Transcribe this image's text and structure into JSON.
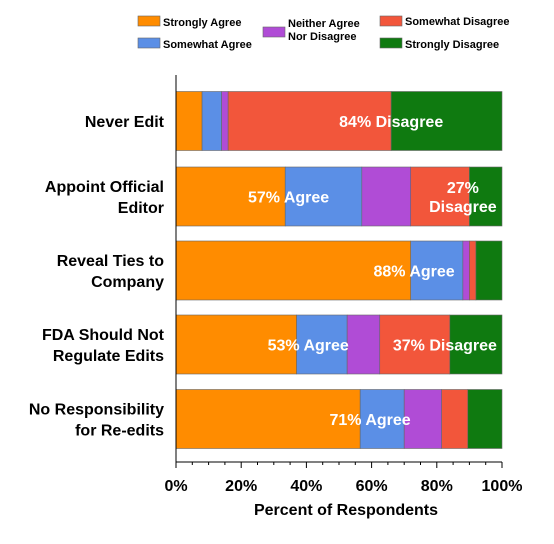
{
  "chart_data": {
    "type": "bar",
    "orientation": "horizontal",
    "stacked": true,
    "xlabel": "Percent of Respondents",
    "xlim": [
      0,
      100
    ],
    "xticks": [
      "0%",
      "20%",
      "40%",
      "60%",
      "80%",
      "100%"
    ],
    "grid": false,
    "legend_position": "top",
    "categories": [
      "Never Edit",
      "Appoint Official Editor",
      "Reveal Ties to Company",
      "FDA Should Not Regulate Edits",
      "No Responsibility for Re-edits"
    ],
    "category_lines": [
      [
        "Never Edit"
      ],
      [
        "Appoint Official",
        "Editor"
      ],
      [
        "Reveal Ties to",
        "Company"
      ],
      [
        "FDA Should Not",
        "Regulate Edits"
      ],
      [
        "No Responsibility",
        "for Re-edits"
      ]
    ],
    "series": [
      {
        "name": "Strongly Agree",
        "color": "#ff8c00",
        "values": [
          8,
          33.5,
          72,
          37,
          56.5
        ]
      },
      {
        "name": "Somewhat Agree",
        "color": "#5b8fe6",
        "values": [
          6,
          23.5,
          16,
          15.5,
          13.5
        ]
      },
      {
        "name": "Neither Agree Nor Disagree",
        "color": "#b04cd6",
        "values": [
          2,
          15,
          2,
          10,
          11.5
        ]
      },
      {
        "name": "Somewhat Disagree",
        "color": "#f2563b",
        "values": [
          50,
          18,
          2,
          21.5,
          8
        ]
      },
      {
        "name": "Strongly Disagree",
        "color": "#0f7a10",
        "values": [
          34,
          10,
          8,
          16,
          10.5
        ]
      }
    ],
    "legend_lines": [
      [
        "Strongly Agree"
      ],
      [
        "Somewhat Agree"
      ],
      [
        "Neither Agree",
        "Nor Disagree"
      ],
      [
        "Somewhat Disagree"
      ],
      [
        "Strongly Disagree"
      ]
    ],
    "annotations": [
      {
        "category": 0,
        "x": 66,
        "lines": [
          "84% Disagree"
        ],
        "anchor": "middle"
      },
      {
        "category": 1,
        "x": 47,
        "lines": [
          "57% Agree"
        ],
        "anchor": "end"
      },
      {
        "category": 1,
        "x": 88,
        "lines": [
          "27%",
          "Disagree"
        ],
        "anchor": "middle"
      },
      {
        "category": 2,
        "x": 85.5,
        "lines": [
          "88% Agree"
        ],
        "anchor": "end"
      },
      {
        "category": 3,
        "x": 53,
        "lines": [
          "53% Agree"
        ],
        "anchor": "end"
      },
      {
        "category": 3,
        "x": 82.5,
        "lines": [
          "37% Disagree"
        ],
        "anchor": "middle"
      },
      {
        "category": 4,
        "x": 72,
        "lines": [
          "71% Agree"
        ],
        "anchor": "end"
      }
    ]
  }
}
